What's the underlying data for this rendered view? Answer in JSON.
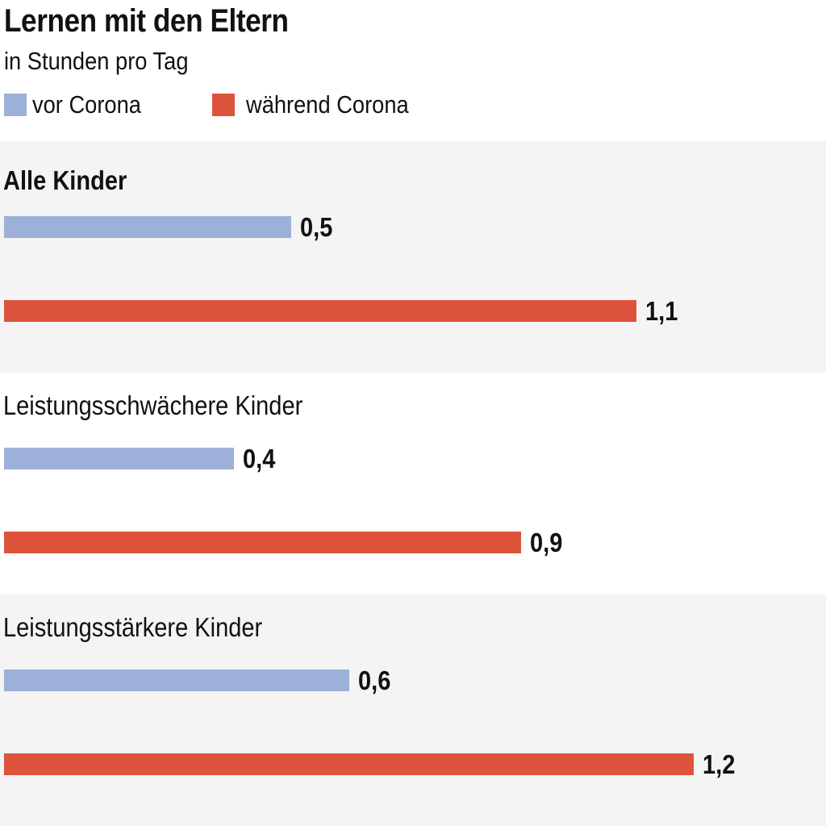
{
  "chart_data": {
    "type": "bar",
    "orientation": "horizontal",
    "title": "Lernen mit den Eltern",
    "subtitle": "in Stunden pro Tag",
    "categories": [
      "Alle Kinder",
      "Leistungsschwächere Kinder",
      "Leistungsstärkere Kinder"
    ],
    "series": [
      {
        "name": "vor Corona",
        "color": "#9db0da",
        "values": [
          0.5,
          0.4,
          0.6
        ],
        "labels": [
          "0,5",
          "0,4",
          "0,6"
        ]
      },
      {
        "name": "während Corona",
        "color": "#dd533c",
        "values": [
          1.1,
          0.9,
          1.2
        ],
        "labels": [
          "1,1",
          "0,9",
          "1,2"
        ]
      }
    ],
    "xlim": [
      0,
      1.2
    ],
    "legend_position": "top-left",
    "grid": false
  }
}
